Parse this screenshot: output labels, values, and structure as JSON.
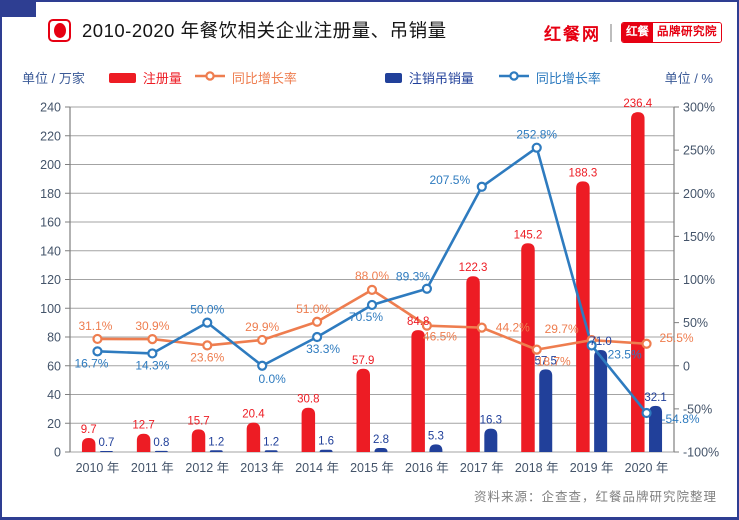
{
  "header": {
    "title": "2010-2020 年餐饮相关企业注册量、吊销量",
    "logo_main": "红餐网",
    "badge_left": "红餐",
    "badge_right": "品牌研究院"
  },
  "legend": {
    "unit_left": "单位 / 万家",
    "unit_right": "单位 / %",
    "items": [
      {
        "label": "注册量",
        "type": "bar",
        "color": "#ed1c24"
      },
      {
        "label": "同比增长率",
        "type": "line",
        "color": "#ee7d4f"
      },
      {
        "label": "注销吊销量",
        "type": "bar",
        "color": "#21409a"
      },
      {
        "label": "同比增长率",
        "type": "line",
        "color": "#2e7bbf"
      }
    ]
  },
  "chart_data": {
    "type": "bar",
    "subtype": "combo bar+line, dual axis",
    "title": "2010-2020 年餐饮相关企业注册量、吊销量",
    "categories": [
      "2010 年",
      "2011 年",
      "2012 年",
      "2013 年",
      "2014 年",
      "2015 年",
      "2016 年",
      "2017 年",
      "2018 年",
      "2019 年",
      "2020 年"
    ],
    "series": [
      {
        "name": "注册量",
        "type": "bar",
        "axis": "left",
        "color": "#ed1c24",
        "values": [
          9.7,
          12.7,
          15.7,
          20.4,
          30.8,
          57.9,
          84.8,
          122.3,
          145.2,
          188.3,
          236.4
        ]
      },
      {
        "name": "注销吊销量",
        "type": "bar",
        "axis": "left",
        "color": "#21409a",
        "values": [
          0.7,
          0.8,
          1.2,
          1.2,
          1.6,
          2.8,
          5.3,
          16.3,
          57.5,
          71.0,
          32.1
        ]
      },
      {
        "name": "注册量同比增长率",
        "type": "line",
        "axis": "right",
        "color": "#ee7d4f",
        "suffix": "%",
        "values": [
          31.1,
          30.9,
          23.6,
          29.9,
          51.0,
          88.0,
          46.5,
          44.2,
          18.7,
          29.7,
          25.5
        ],
        "label_offsets": [
          [
            -2,
            -9
          ],
          [
            0,
            -9
          ],
          [
            0,
            16
          ],
          [
            0,
            -9
          ],
          [
            -4,
            -9
          ],
          [
            0,
            -10
          ],
          [
            13,
            15
          ],
          [
            31,
            4
          ],
          [
            17,
            16
          ],
          [
            -30,
            -7
          ],
          [
            30,
            -2
          ]
        ]
      },
      {
        "name": "注销吊销量同比增长率",
        "type": "line",
        "axis": "right",
        "color": "#2e7bbf",
        "suffix": "%",
        "values": [
          16.7,
          14.3,
          50.0,
          0.0,
          33.3,
          70.5,
          89.3,
          207.5,
          252.8,
          23.5,
          -54.8
        ],
        "label_offsets": [
          [
            -6,
            16
          ],
          [
            0,
            16
          ],
          [
            0,
            -9
          ],
          [
            10,
            17
          ],
          [
            6,
            16
          ],
          [
            -6,
            16
          ],
          [
            -14,
            -8
          ],
          [
            -32,
            -3
          ],
          [
            0,
            -9
          ],
          [
            33,
            13
          ],
          [
            34,
            10
          ]
        ]
      }
    ],
    "left_axis": {
      "min": 0,
      "max": 240,
      "step": 20,
      "unit": "万家"
    },
    "right_axis": {
      "min": -100,
      "max": 300,
      "step": 50,
      "suffix": "%",
      "zero_label": "0"
    },
    "grid": true,
    "legend_position": "top",
    "axis_text_color": "#44546a",
    "grid_color": "#a3a3a3",
    "axis_line_color": "#7f7f7f"
  },
  "footer": {
    "source": "资料来源：企查查，红餐品牌研究院整理"
  }
}
